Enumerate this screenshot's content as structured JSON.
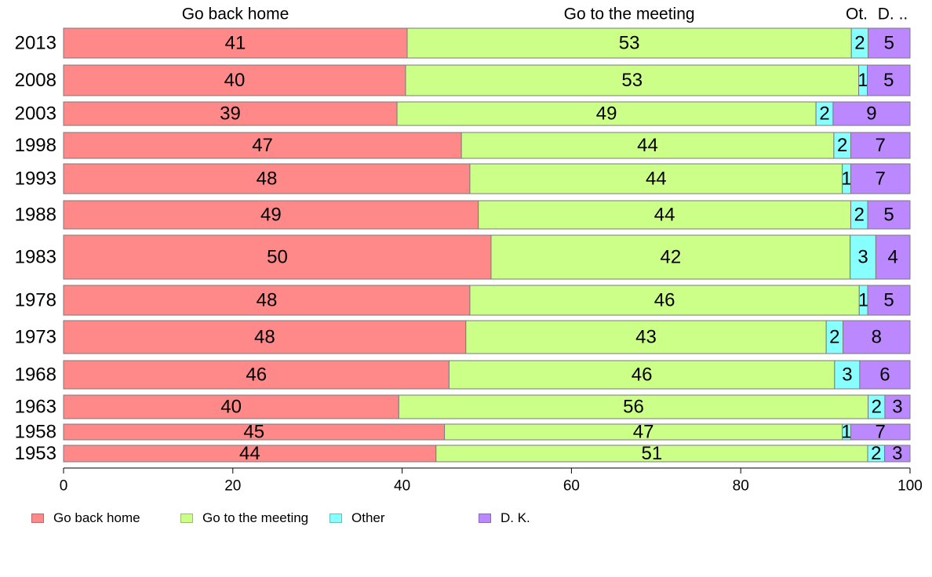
{
  "chart_data": {
    "type": "bar",
    "orientation": "horizontal",
    "stacked": true,
    "categories": [
      "2013",
      "2008",
      "2003",
      "1998",
      "1993",
      "1988",
      "1983",
      "1978",
      "1973",
      "1968",
      "1963",
      "1958",
      "1953"
    ],
    "series": [
      {
        "name": "Go back home",
        "color": "#ff8888",
        "values": [
          41,
          40,
          39,
          47,
          48,
          49,
          50,
          48,
          48,
          46,
          40,
          45,
          44
        ]
      },
      {
        "name": "Go to the meeting",
        "color": "#ccff88",
        "values": [
          53,
          53,
          49,
          44,
          44,
          44,
          42,
          46,
          43,
          46,
          56,
          47,
          51
        ]
      },
      {
        "name": "Other",
        "color": "#88ffff",
        "values": [
          2,
          1,
          2,
          2,
          1,
          2,
          3,
          1,
          2,
          3,
          2,
          1,
          2
        ]
      },
      {
        "name": "D. K.",
        "color": "#bb88ff",
        "values": [
          5,
          5,
          9,
          7,
          7,
          5,
          4,
          5,
          8,
          6,
          3,
          7,
          3
        ]
      }
    ],
    "top_labels": [
      "Go back home",
      "Go to the meeting",
      "Ot.",
      "D. .."
    ],
    "xlim": [
      0,
      100
    ],
    "xticks": [
      0,
      20,
      40,
      60,
      80,
      100
    ],
    "grid": false,
    "legend_position": "bottom-left"
  },
  "legend": [
    {
      "label": "Go back home",
      "color": "#ff8888"
    },
    {
      "label": "Go to the meeting",
      "color": "#ccff88"
    },
    {
      "label": "Other",
      "color": "#88ffff"
    },
    {
      "label": "D. K.",
      "color": "#bb88ff"
    }
  ]
}
